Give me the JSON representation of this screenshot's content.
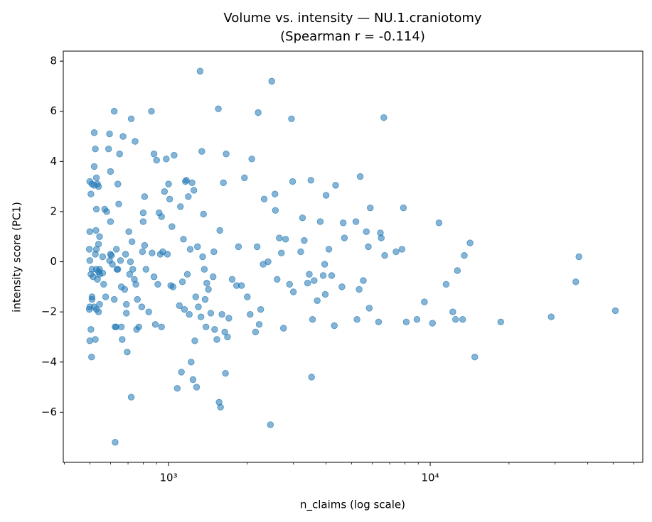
{
  "chart_data": {
    "type": "scatter",
    "title": "Volume vs. intensity — NU.1.craniotomy",
    "subtitle": "(Spearman r = -0.114)",
    "x_label": "n_claims (log scale)",
    "y_label": "intensity score (PC1)",
    "x_scale": "log",
    "color": "#1f77b4",
    "xlim": [
      396,
      64900
    ],
    "ylim": [
      -8.0,
      8.4
    ],
    "xticks": [
      {
        "value": 1000,
        "label": "10³"
      },
      {
        "value": 10000,
        "label": "10⁴"
      }
    ],
    "xminorticks": [
      400,
      500,
      600,
      700,
      800,
      900,
      2000,
      3000,
      4000,
      5000,
      6000,
      7000,
      8000,
      9000,
      20000,
      30000,
      40000,
      50000,
      60000
    ],
    "yticks": [
      {
        "value": -6,
        "label": "−6"
      },
      {
        "value": -4,
        "label": "−4"
      },
      {
        "value": -2,
        "label": "−2"
      },
      0,
      2,
      4,
      6,
      8
    ],
    "x": [
      500,
      505,
      510,
      500,
      498,
      500,
      510,
      505,
      515,
      500,
      498,
      505,
      500,
      508,
      510,
      510,
      520,
      525,
      520,
      525,
      520,
      520,
      530,
      535,
      540,
      530,
      528,
      525,
      530,
      540,
      545,
      530,
      540,
      535,
      545,
      545,
      530,
      540,
      545,
      560,
      560,
      565,
      575,
      570,
      580,
      595,
      590,
      600,
      595,
      600,
      605,
      610,
      600,
      620,
      620,
      625,
      625,
      630,
      632,
      635,
      640,
      640,
      645,
      650,
      655,
      660,
      660,
      665,
      670,
      680,
      685,
      690,
      690,
      695,
      705,
      710,
      715,
      720,
      720,
      725,
      730,
      740,
      745,
      750,
      755,
      760,
      770,
      790,
      795,
      800,
      800,
      810,
      810,
      820,
      840,
      860,
      865,
      880,
      880,
      890,
      900,
      910,
      920,
      930,
      940,
      940,
      950,
      965,
      980,
      990,
      1000,
      1010,
      1020,
      1030,
      1040,
      1050,
      1080,
      1100,
      1110,
      1120,
      1130,
      1140,
      1150,
      1160,
      1170,
      1180,
      1190,
      1200,
      1210,
      1220,
      1230,
      1240,
      1250,
      1260,
      1270,
      1280,
      1290,
      1300,
      1320,
      1330,
      1340,
      1350,
      1360,
      1370,
      1380,
      1390,
      1400,
      1420,
      1450,
      1480,
      1490,
      1500,
      1530,
      1550,
      1560,
      1570,
      1580,
      1600,
      1620,
      1640,
      1650,
      1660,
      1680,
      1700,
      1750,
      1820,
      1850,
      1900,
      1950,
      2000,
      2050,
      2080,
      2150,
      2180,
      2200,
      2220,
      2250,
      2300,
      2320,
      2400,
      2450,
      2480,
      2550,
      2560,
      2600,
      2650,
      2700,
      2750,
      2800,
      2900,
      2950,
      2980,
      3000,
      3200,
      3250,
      3300,
      3400,
      3450,
      3500,
      3520,
      3550,
      3600,
      3700,
      3800,
      3900,
      3950,
      3970,
      4000,
      4100,
      4200,
      4300,
      4350,
      4600,
      4650,
      4700,
      5200,
      5250,
      5350,
      5400,
      5550,
      5700,
      5800,
      5850,
      5900,
      6350,
      6450,
      6500,
      6650,
      6700,
      7400,
      7900,
      7800,
      8100,
      8900,
      9500,
      10200,
      10800,
      11500,
      12200,
      12500,
      12700,
      13300,
      13500,
      14200,
      14800,
      18600,
      29000,
      36000,
      37000,
      51000
    ],
    "y": [
      3.2,
      2.7,
      3.1,
      1.2,
      0.5,
      0.05,
      -0.3,
      -0.5,
      -0.6,
      -1.8,
      -1.9,
      -2.7,
      -3.15,
      -3.8,
      -1.4,
      -1.5,
      -1.8,
      -3.1,
      5.15,
      4.5,
      3.8,
      3.05,
      3.35,
      3.1,
      3.0,
      2.1,
      1.25,
      0.3,
      0.5,
      0.7,
      1.0,
      -0.3,
      -0.4,
      -0.7,
      -0.3,
      -0.5,
      -1.9,
      -2.0,
      -1.7,
      -0.45,
      0.2,
      -0.9,
      -1.4,
      2.1,
      2.0,
      5.1,
      4.5,
      3.6,
      0.05,
      0.3,
      0.25,
      -0.1,
      1.6,
      -1.5,
      6.0,
      -2.6,
      -7.2,
      -2.6,
      0.5,
      -0.3,
      -0.3,
      3.1,
      2.3,
      4.3,
      0.05,
      -1.0,
      -2.6,
      -3.1,
      5.0,
      -1.1,
      0.3,
      -1.7,
      -2.05,
      -3.6,
      1.2,
      -0.5,
      0.0,
      5.7,
      -5.4,
      0.8,
      -0.3,
      -0.7,
      4.8,
      -0.9,
      -2.7,
      -1.5,
      -2.6,
      -1.8,
      0.4,
      1.95,
      1.6,
      2.6,
      0.65,
      -0.3,
      -2.0,
      6.0,
      0.35,
      4.3,
      -0.6,
      -2.5,
      4.05,
      -0.9,
      1.95,
      0.3,
      -2.6,
      1.8,
      0.4,
      2.8,
      4.1,
      0.3,
      3.1,
      2.5,
      -0.95,
      1.4,
      -1.0,
      4.25,
      -5.05,
      -1.75,
      2.2,
      -4.4,
      -0.8,
      0.9,
      -1.9,
      3.2,
      3.25,
      -0.5,
      2.6,
      -2.1,
      0.5,
      -4.0,
      3.15,
      -4.7,
      2.85,
      -3.15,
      -1.4,
      -5.0,
      0.6,
      -1.8,
      7.6,
      -2.2,
      4.4,
      0.2,
      1.9,
      -0.3,
      -1.5,
      -2.6,
      -0.85,
      -1.1,
      -2.05,
      -0.6,
      0.4,
      -2.7,
      -3.1,
      6.1,
      -5.6,
      1.25,
      -5.8,
      -2.1,
      3.15,
      -2.8,
      -4.45,
      4.3,
      -3.0,
      -2.25,
      -0.7,
      -0.95,
      0.6,
      -0.95,
      3.35,
      -1.4,
      -2.1,
      4.1,
      -2.8,
      0.6,
      5.95,
      -2.5,
      -1.9,
      -0.1,
      2.5,
      0.0,
      -6.5,
      7.2,
      2.7,
      2.05,
      -0.7,
      0.95,
      0.35,
      -2.65,
      0.9,
      -0.9,
      5.7,
      3.2,
      -1.2,
      0.4,
      1.75,
      0.85,
      -0.85,
      -0.5,
      3.25,
      -4.6,
      -2.3,
      -0.75,
      -1.55,
      1.6,
      -0.55,
      -0.1,
      -1.3,
      2.65,
      0.5,
      -0.55,
      -2.55,
      3.05,
      -1.0,
      1.55,
      0.95,
      1.6,
      -2.3,
      -1.1,
      3.4,
      -0.75,
      1.2,
      0.6,
      -1.85,
      2.15,
      -2.4,
      1.15,
      0.95,
      5.75,
      0.25,
      0.4,
      2.15,
      0.5,
      -2.4,
      -2.3,
      -1.6,
      -2.45,
      1.55,
      -0.9,
      -2.0,
      -2.3,
      -0.35,
      -2.3,
      0.25,
      0.75,
      -3.8,
      -2.4,
      -2.2,
      -0.8,
      0.2,
      -1.95
    ]
  }
}
